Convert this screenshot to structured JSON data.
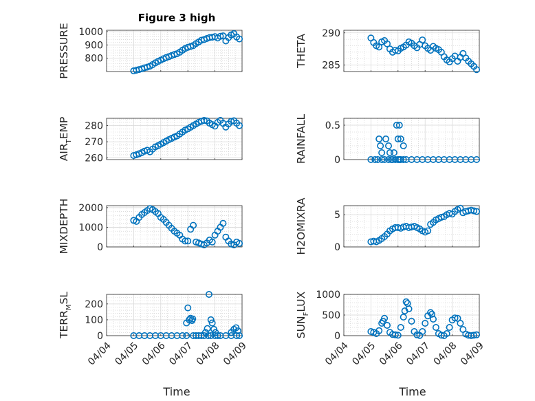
{
  "figure_title": "Figure 3 high",
  "xlabel": "Time",
  "colors": {
    "marker": "#0072BD",
    "axes": "#262626",
    "grid": "#c8c8c8"
  },
  "chart_data": [
    {
      "type": "scatter",
      "ylabel": "PRESSURE",
      "ylabel_sub": "",
      "ylabel_tail": "",
      "title": "Figure 3 high",
      "xlim": [
        "04/04",
        "04/09"
      ],
      "xticks": [],
      "ylim": [
        700,
        1010
      ],
      "yticks": [
        800,
        900,
        1000
      ],
      "grid": true,
      "x": [
        1.0,
        1.1,
        1.2,
        1.3,
        1.4,
        1.5,
        1.6,
        1.7,
        1.8,
        1.9,
        2.0,
        2.1,
        2.2,
        2.3,
        2.4,
        2.5,
        2.6,
        2.7,
        2.8,
        2.9,
        3.0,
        3.1,
        3.2,
        3.3,
        3.4,
        3.5,
        3.6,
        3.7,
        3.8,
        3.9,
        4.0,
        4.1,
        4.2,
        4.3,
        4.4,
        4.5,
        4.6,
        4.7,
        4.8,
        4.9
      ],
      "y": [
        705,
        710,
        715,
        720,
        728,
        733,
        740,
        752,
        765,
        776,
        786,
        796,
        805,
        812,
        820,
        828,
        834,
        845,
        860,
        873,
        882,
        888,
        895,
        910,
        922,
        935,
        940,
        948,
        955,
        958,
        962,
        952,
        965,
        968,
        930,
        955,
        975,
        985,
        960,
        945
      ]
    },
    {
      "type": "scatter",
      "ylabel": "THETA",
      "ylabel_sub": "",
      "ylabel_tail": "",
      "xlim": [
        "04/04",
        "04/09"
      ],
      "xticks": [],
      "ylim": [
        284,
        290.4
      ],
      "yticks": [
        285,
        290
      ],
      "grid": true,
      "x": [
        1.0,
        1.1,
        1.2,
        1.3,
        1.4,
        1.5,
        1.6,
        1.7,
        1.8,
        1.9,
        2.0,
        2.1,
        2.2,
        2.3,
        2.4,
        2.5,
        2.6,
        2.7,
        2.8,
        2.9,
        3.0,
        3.1,
        3.2,
        3.3,
        3.4,
        3.5,
        3.6,
        3.7,
        3.8,
        3.9,
        4.0,
        4.1,
        4.2,
        4.3,
        4.4,
        4.5,
        4.6,
        4.7,
        4.8,
        4.9
      ],
      "y": [
        289.2,
        288.5,
        288.0,
        287.8,
        288.6,
        288.8,
        288.3,
        287.5,
        287.0,
        287.3,
        287.2,
        287.6,
        287.8,
        288.1,
        288.6,
        288.4,
        288.0,
        287.7,
        288.2,
        288.9,
        288.0,
        287.6,
        287.3,
        287.9,
        287.6,
        287.4,
        287.0,
        286.3,
        285.8,
        285.5,
        286.0,
        286.4,
        285.6,
        286.2,
        286.8,
        286.1,
        285.6,
        285.2,
        284.8,
        284.3
      ]
    },
    {
      "type": "scatter",
      "ylabel": "AIR",
      "ylabel_sub": "T",
      "ylabel_tail": "EMP",
      "xlim": [
        "04/04",
        "04/09"
      ],
      "xticks": [],
      "ylim": [
        259,
        284.5
      ],
      "yticks": [
        260,
        270,
        280
      ],
      "grid": true,
      "x": [
        1.0,
        1.1,
        1.2,
        1.3,
        1.4,
        1.5,
        1.6,
        1.7,
        1.8,
        1.9,
        2.0,
        2.1,
        2.2,
        2.3,
        2.4,
        2.5,
        2.6,
        2.7,
        2.8,
        2.9,
        3.0,
        3.1,
        3.2,
        3.3,
        3.4,
        3.5,
        3.6,
        3.7,
        3.8,
        3.9,
        4.0,
        4.1,
        4.2,
        4.3,
        4.4,
        4.5,
        4.6,
        4.7,
        4.8,
        4.9
      ],
      "y": [
        261.5,
        262.0,
        262.6,
        263.3,
        264.2,
        264.8,
        263.8,
        265.5,
        266.8,
        267.6,
        268.5,
        269.5,
        270.4,
        271.3,
        272.1,
        272.9,
        273.6,
        274.8,
        276.0,
        277.2,
        278.0,
        279.0,
        280.0,
        281.0,
        282.0,
        282.7,
        283.2,
        282.9,
        281.5,
        280.6,
        279.7,
        282.0,
        283.2,
        281.4,
        279.1,
        281.0,
        282.6,
        283.0,
        281.5,
        280.0
      ]
    },
    {
      "type": "scatter",
      "ylabel": "RAINFALL",
      "ylabel_sub": "",
      "ylabel_tail": "",
      "xlim": [
        "04/04",
        "04/09"
      ],
      "xticks": [],
      "ylim": [
        0,
        0.6
      ],
      "yticks": [
        0,
        0.5
      ],
      "grid": true,
      "x": [
        1.0,
        1.15,
        1.25,
        1.4,
        1.5,
        1.65,
        1.75,
        1.8,
        1.9,
        2.0,
        2.05,
        2.1,
        2.2,
        2.3,
        2.5,
        2.7,
        2.9,
        3.1,
        3.3,
        3.5,
        3.7,
        3.9,
        4.1,
        4.3,
        4.5,
        4.7,
        4.9,
        1.3,
        1.35,
        1.4,
        1.55,
        1.65,
        1.7,
        1.85,
        1.95,
        2.0,
        2.05,
        2.1,
        2.2
      ],
      "y": [
        0,
        0,
        0,
        0,
        0,
        0,
        0,
        0,
        0,
        0,
        0,
        0,
        0,
        0,
        0,
        0,
        0,
        0,
        0,
        0,
        0,
        0,
        0,
        0,
        0,
        0,
        0,
        0.3,
        0.2,
        0.1,
        0.3,
        0.2,
        0.1,
        0.1,
        0.5,
        0.3,
        0.5,
        0.3,
        0.2
      ]
    },
    {
      "type": "scatter",
      "ylabel": "MIXDEPTH",
      "ylabel_sub": "",
      "ylabel_tail": "",
      "xlim": [
        "04/04",
        "04/09"
      ],
      "xticks": [],
      "ylim": [
        0,
        2100
      ],
      "yticks": [
        0,
        1000,
        2000
      ],
      "grid": true,
      "x": [
        1.0,
        1.1,
        1.2,
        1.3,
        1.4,
        1.5,
        1.6,
        1.7,
        1.8,
        1.9,
        2.0,
        2.1,
        2.2,
        2.3,
        2.4,
        2.5,
        2.6,
        2.7,
        2.8,
        2.9,
        3.0,
        3.1,
        3.2,
        3.3,
        3.4,
        3.5,
        3.6,
        3.7,
        3.8,
        3.9,
        4.0,
        4.1,
        4.2,
        4.3,
        4.4,
        4.5,
        4.6,
        4.7,
        4.8,
        4.9
      ],
      "y": [
        1350,
        1300,
        1500,
        1650,
        1750,
        1850,
        1950,
        1900,
        1800,
        1700,
        1500,
        1400,
        1250,
        1100,
        950,
        800,
        700,
        600,
        400,
        300,
        300,
        900,
        1100,
        250,
        200,
        150,
        100,
        200,
        350,
        250,
        600,
        800,
        1000,
        1200,
        500,
        300,
        150,
        100,
        250,
        180
      ]
    },
    {
      "type": "scatter",
      "ylabel": "H2OMIXRA",
      "ylabel_sub": "",
      "ylabel_tail": "",
      "xlim": [
        "04/04",
        "04/09"
      ],
      "xticks": [],
      "ylim": [
        0,
        6.4
      ],
      "yticks": [
        0,
        5
      ],
      "grid": true,
      "x": [
        1.0,
        1.1,
        1.2,
        1.3,
        1.4,
        1.5,
        1.6,
        1.7,
        1.8,
        1.9,
        2.0,
        2.1,
        2.2,
        2.3,
        2.4,
        2.5,
        2.6,
        2.7,
        2.8,
        2.9,
        3.0,
        3.1,
        3.2,
        3.3,
        3.4,
        3.5,
        3.6,
        3.7,
        3.8,
        3.9,
        4.0,
        4.1,
        4.2,
        4.3,
        4.4,
        4.5,
        4.6,
        4.7,
        4.8,
        4.9
      ],
      "y": [
        0.8,
        0.9,
        0.8,
        1.0,
        1.3,
        1.6,
        2.0,
        2.5,
        2.8,
        3.0,
        3.0,
        2.9,
        3.1,
        3.2,
        3.0,
        3.1,
        3.2,
        3.0,
        2.8,
        2.5,
        2.3,
        2.5,
        3.5,
        3.8,
        4.2,
        4.4,
        4.6,
        4.7,
        5.0,
        5.2,
        5.1,
        5.5,
        5.8,
        6.0,
        5.3,
        5.5,
        5.6,
        5.7,
        5.6,
        5.5
      ]
    },
    {
      "type": "scatter",
      "ylabel": "TERR",
      "ylabel_sub": "M",
      "ylabel_tail": "SL",
      "xlim": [
        "04/04",
        "04/09"
      ],
      "xticks": [
        "04/04",
        "04/05",
        "04/06",
        "04/07",
        "04/08",
        "04/09"
      ],
      "ylim": [
        0,
        260
      ],
      "yticks": [
        0,
        100,
        200
      ],
      "grid": true,
      "x": [
        1.0,
        1.2,
        1.4,
        1.6,
        1.8,
        2.0,
        2.2,
        2.4,
        2.6,
        2.8,
        2.95,
        3.2,
        3.3,
        3.4,
        3.5,
        3.6,
        3.75,
        3.85,
        4.0,
        4.1,
        4.2,
        4.4,
        4.6,
        4.8,
        4.9,
        2.95,
        3.0,
        3.05,
        3.1,
        3.15,
        3.18,
        3.65,
        3.72,
        3.78,
        3.85,
        3.9,
        3.96,
        4.02,
        4.6,
        4.7,
        4.78,
        4.85
      ],
      "y": [
        0,
        0,
        0,
        0,
        0,
        0,
        0,
        0,
        0,
        0,
        0,
        0,
        0,
        0,
        0,
        0,
        0,
        0,
        0,
        0,
        0,
        0,
        0,
        0,
        0,
        80,
        175,
        100,
        110,
        95,
        105,
        20,
        45,
        260,
        100,
        80,
        40,
        20,
        20,
        40,
        50,
        30
      ]
    },
    {
      "type": "scatter",
      "ylabel": "SUN",
      "ylabel_sub": "F",
      "ylabel_tail": "LUX",
      "xlim": [
        "04/04",
        "04/09"
      ],
      "xticks": [
        "04/04",
        "04/05",
        "04/06",
        "04/07",
        "04/08",
        "04/09"
      ],
      "ylim": [
        0,
        1000
      ],
      "yticks": [
        0,
        500,
        1000
      ],
      "grid": true,
      "x": [
        1.0,
        1.1,
        1.2,
        1.3,
        1.4,
        1.45,
        1.5,
        1.6,
        1.7,
        1.8,
        1.9,
        2.0,
        2.1,
        2.2,
        2.25,
        2.3,
        2.35,
        2.4,
        2.5,
        2.6,
        2.7,
        2.8,
        2.9,
        3.0,
        3.1,
        3.2,
        3.25,
        3.3,
        3.4,
        3.5,
        3.6,
        3.7,
        3.8,
        3.9,
        4.0,
        4.1,
        4.2,
        4.3,
        4.4,
        4.5,
        4.6,
        4.7,
        4.8,
        4.9
      ],
      "y": [
        100,
        80,
        50,
        120,
        300,
        350,
        420,
        250,
        80,
        30,
        20,
        10,
        200,
        450,
        600,
        820,
        780,
        650,
        350,
        100,
        20,
        5,
        100,
        300,
        480,
        560,
        520,
        400,
        200,
        50,
        10,
        0,
        50,
        200,
        380,
        430,
        420,
        300,
        150,
        40,
        10,
        0,
        10,
        20
      ]
    }
  ]
}
